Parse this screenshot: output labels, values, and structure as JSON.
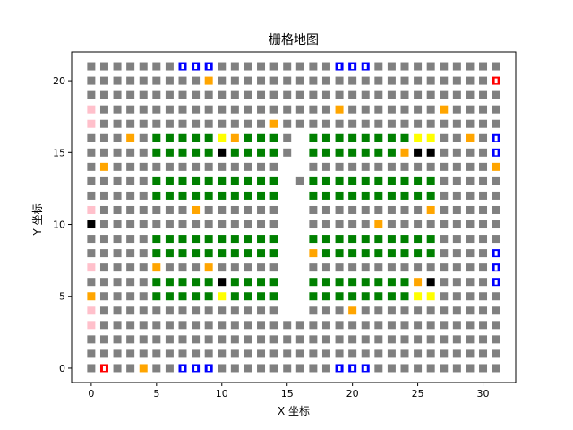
{
  "chart_data": {
    "type": "scatter",
    "title": "栅格地图",
    "xlabel": "X 坐标",
    "ylabel": "Y 坐标",
    "xlim": [
      -1.5,
      32.5
    ],
    "ylim": [
      -1.0,
      22.0
    ],
    "xticks": [
      0,
      5,
      10,
      15,
      20,
      25,
      30
    ],
    "yticks": [
      0,
      5,
      10,
      15,
      20
    ],
    "grid": false,
    "colors": {
      "road": "#808080",
      "shelf": "#008000",
      "station": "#0000ff",
      "charging": "#ffa500",
      "obstacle": "#000000",
      "highlight": "#ffff00",
      "start": "#ff0000",
      "parking": "#ffc0cb"
    },
    "grid_extent": {
      "x": [
        0,
        31
      ],
      "y": [
        0,
        21
      ]
    },
    "default_cell": "road",
    "cells": {
      "shelf": [
        [
          5,
          16
        ],
        [
          6,
          16
        ],
        [
          7,
          16
        ],
        [
          8,
          16
        ],
        [
          9,
          16
        ],
        [
          12,
          16
        ],
        [
          13,
          16
        ],
        [
          14,
          16
        ],
        [
          17,
          16
        ],
        [
          18,
          16
        ],
        [
          19,
          16
        ],
        [
          20,
          16
        ],
        [
          21,
          16
        ],
        [
          22,
          16
        ],
        [
          23,
          16
        ],
        [
          24,
          16
        ],
        [
          5,
          15
        ],
        [
          6,
          15
        ],
        [
          7,
          15
        ],
        [
          8,
          15
        ],
        [
          9,
          15
        ],
        [
          11,
          15
        ],
        [
          12,
          15
        ],
        [
          13,
          15
        ],
        [
          14,
          15
        ],
        [
          17,
          15
        ],
        [
          18,
          15
        ],
        [
          19,
          15
        ],
        [
          20,
          15
        ],
        [
          21,
          15
        ],
        [
          22,
          15
        ],
        [
          23,
          15
        ],
        [
          5,
          13
        ],
        [
          6,
          13
        ],
        [
          7,
          13
        ],
        [
          8,
          13
        ],
        [
          9,
          13
        ],
        [
          10,
          13
        ],
        [
          11,
          13
        ],
        [
          12,
          13
        ],
        [
          13,
          13
        ],
        [
          14,
          13
        ],
        [
          17,
          13
        ],
        [
          18,
          13
        ],
        [
          19,
          13
        ],
        [
          20,
          13
        ],
        [
          21,
          13
        ],
        [
          22,
          13
        ],
        [
          23,
          13
        ],
        [
          24,
          13
        ],
        [
          25,
          13
        ],
        [
          26,
          13
        ],
        [
          5,
          12
        ],
        [
          6,
          12
        ],
        [
          7,
          12
        ],
        [
          8,
          12
        ],
        [
          9,
          12
        ],
        [
          10,
          12
        ],
        [
          11,
          12
        ],
        [
          12,
          12
        ],
        [
          13,
          12
        ],
        [
          14,
          12
        ],
        [
          17,
          12
        ],
        [
          18,
          12
        ],
        [
          19,
          12
        ],
        [
          20,
          12
        ],
        [
          21,
          12
        ],
        [
          22,
          12
        ],
        [
          23,
          12
        ],
        [
          24,
          12
        ],
        [
          25,
          12
        ],
        [
          26,
          12
        ],
        [
          5,
          9
        ],
        [
          6,
          9
        ],
        [
          7,
          9
        ],
        [
          8,
          9
        ],
        [
          9,
          9
        ],
        [
          10,
          9
        ],
        [
          11,
          9
        ],
        [
          12,
          9
        ],
        [
          13,
          9
        ],
        [
          14,
          9
        ],
        [
          17,
          9
        ],
        [
          18,
          9
        ],
        [
          19,
          9
        ],
        [
          20,
          9
        ],
        [
          21,
          9
        ],
        [
          22,
          9
        ],
        [
          23,
          9
        ],
        [
          24,
          9
        ],
        [
          25,
          9
        ],
        [
          26,
          9
        ],
        [
          5,
          8
        ],
        [
          6,
          8
        ],
        [
          7,
          8
        ],
        [
          8,
          8
        ],
        [
          9,
          8
        ],
        [
          10,
          8
        ],
        [
          11,
          8
        ],
        [
          12,
          8
        ],
        [
          13,
          8
        ],
        [
          14,
          8
        ],
        [
          18,
          8
        ],
        [
          19,
          8
        ],
        [
          20,
          8
        ],
        [
          21,
          8
        ],
        [
          22,
          8
        ],
        [
          23,
          8
        ],
        [
          24,
          8
        ],
        [
          25,
          8
        ],
        [
          26,
          8
        ],
        [
          5,
          6
        ],
        [
          6,
          6
        ],
        [
          7,
          6
        ],
        [
          8,
          6
        ],
        [
          9,
          6
        ],
        [
          11,
          6
        ],
        [
          12,
          6
        ],
        [
          13,
          6
        ],
        [
          14,
          6
        ],
        [
          17,
          6
        ],
        [
          18,
          6
        ],
        [
          19,
          6
        ],
        [
          20,
          6
        ],
        [
          21,
          6
        ],
        [
          22,
          6
        ],
        [
          23,
          6
        ],
        [
          24,
          6
        ],
        [
          5,
          5
        ],
        [
          6,
          5
        ],
        [
          7,
          5
        ],
        [
          8,
          5
        ],
        [
          9,
          5
        ],
        [
          11,
          5
        ],
        [
          12,
          5
        ],
        [
          13,
          5
        ],
        [
          14,
          5
        ],
        [
          17,
          5
        ],
        [
          18,
          5
        ],
        [
          19,
          5
        ],
        [
          20,
          5
        ],
        [
          21,
          5
        ],
        [
          22,
          5
        ],
        [
          23,
          5
        ],
        [
          24,
          5
        ]
      ],
      "station": [
        [
          7,
          21
        ],
        [
          8,
          21
        ],
        [
          9,
          21
        ],
        [
          19,
          21
        ],
        [
          20,
          21
        ],
        [
          21,
          21
        ],
        [
          7,
          0
        ],
        [
          8,
          0
        ],
        [
          9,
          0
        ],
        [
          19,
          0
        ],
        [
          20,
          0
        ],
        [
          21,
          0
        ],
        [
          31,
          16
        ],
        [
          31,
          15
        ],
        [
          31,
          8
        ],
        [
          31,
          7
        ],
        [
          31,
          6
        ]
      ],
      "charging": [
        [
          9,
          20
        ],
        [
          19,
          18
        ],
        [
          27,
          18
        ],
        [
          14,
          17
        ],
        [
          3,
          16
        ],
        [
          11,
          16
        ],
        [
          29,
          16
        ],
        [
          24,
          15
        ],
        [
          1,
          14
        ],
        [
          31,
          14
        ],
        [
          8,
          11
        ],
        [
          26,
          11
        ],
        [
          22,
          10
        ],
        [
          17,
          8
        ],
        [
          5,
          7
        ],
        [
          9,
          7
        ],
        [
          25,
          6
        ],
        [
          0,
          5
        ],
        [
          20,
          4
        ],
        [
          4,
          0
        ]
      ],
      "obstacle": [
        [
          10,
          15
        ],
        [
          25,
          15
        ],
        [
          26,
          15
        ],
        [
          0,
          10
        ],
        [
          10,
          6
        ],
        [
          26,
          6
        ]
      ],
      "highlight": [
        [
          10,
          16
        ],
        [
          25,
          16
        ],
        [
          26,
          16
        ],
        [
          10,
          5
        ],
        [
          25,
          5
        ],
        [
          26,
          5
        ]
      ],
      "start": [
        [
          31,
          20
        ],
        [
          1,
          0
        ]
      ],
      "parking": [
        [
          0,
          18
        ],
        [
          0,
          17
        ],
        [
          0,
          11
        ],
        [
          0,
          7
        ],
        [
          0,
          4
        ],
        [
          0,
          3
        ]
      ],
      "empty": [
        [
          15,
          14
        ],
        [
          15,
          13
        ],
        [
          15,
          12
        ],
        [
          15,
          11
        ],
        [
          15,
          10
        ],
        [
          15,
          9
        ],
        [
          15,
          8
        ],
        [
          15,
          7
        ],
        [
          15,
          6
        ],
        [
          15,
          5
        ],
        [
          15,
          4
        ],
        [
          16,
          16
        ],
        [
          16,
          15
        ],
        [
          16,
          14
        ],
        [
          16,
          12
        ],
        [
          16,
          11
        ],
        [
          16,
          10
        ],
        [
          16,
          9
        ],
        [
          16,
          8
        ],
        [
          16,
          7
        ],
        [
          16,
          6
        ],
        [
          16,
          5
        ],
        [
          16,
          4
        ]
      ]
    }
  }
}
